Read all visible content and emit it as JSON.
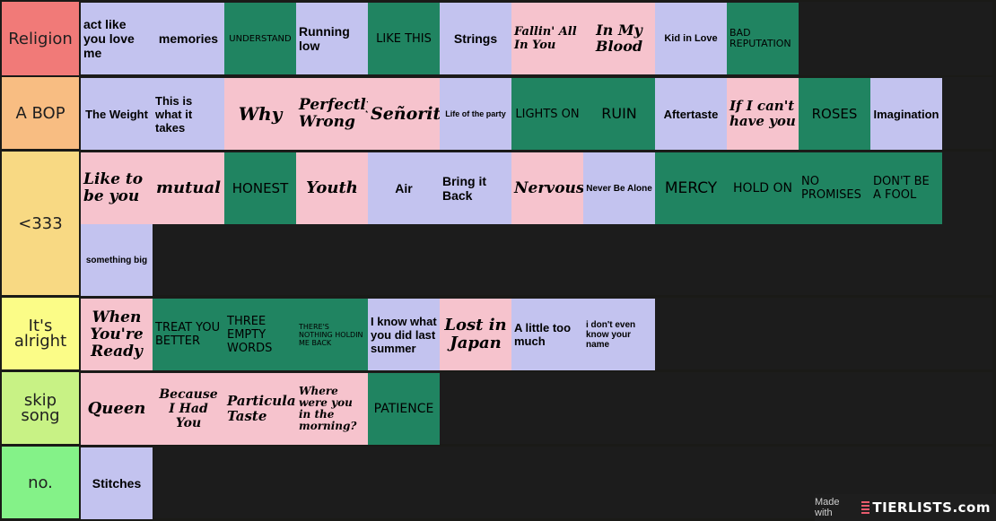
{
  "tiers": [
    {
      "id": "religion",
      "label": "Religion",
      "color": "#f17a78",
      "items": [
        {
          "text": "act like you love me",
          "color": "#c3c3ef",
          "style": "sans-left",
          "size": 14
        },
        {
          "text": "memories",
          "color": "#c3c3ef",
          "style": "sans-center",
          "size": 14
        },
        {
          "text": "UNDERSTAND",
          "color": "#208461",
          "style": "caps-center",
          "size": 10
        },
        {
          "text": "Running low",
          "color": "#c3c3ef",
          "style": "sans-left",
          "size": 14
        },
        {
          "text": "LIKE THIS",
          "color": "#208461",
          "style": "caps-center",
          "size": 13
        },
        {
          "text": "Strings",
          "color": "#c3c3ef",
          "style": "sans-center",
          "size": 14
        },
        {
          "text": "Fallin' All In You",
          "color": "#f6c3cd",
          "style": "script-left",
          "size": 13
        },
        {
          "text": "In My Blood",
          "color": "#f6c3cd",
          "style": "script-center",
          "size": 16
        },
        {
          "text": "Kid in Love",
          "color": "#c3c3ef",
          "style": "sans-center",
          "size": 11
        },
        {
          "text": "BAD REPUTATION",
          "color": "#208461",
          "style": "caps-left",
          "size": 11
        }
      ]
    },
    {
      "id": "a-bop",
      "label": "A BOP",
      "color": "#f8bd82",
      "items": [
        {
          "text": "The Weight",
          "color": "#c3c3ef",
          "style": "sans-center",
          "size": 13
        },
        {
          "text": "This is what it takes",
          "color": "#c3c3ef",
          "style": "sans-left",
          "size": 13
        },
        {
          "text": "Why",
          "color": "#f6c3cd",
          "style": "script-center",
          "size": 20
        },
        {
          "text": "Perfectly Wrong",
          "color": "#f6c3cd",
          "style": "script-left",
          "size": 17
        },
        {
          "text": "Señorita",
          "color": "#f6c3cd",
          "style": "script-center",
          "size": 19
        },
        {
          "text": "Life of the party",
          "color": "#c3c3ef",
          "style": "sans-center",
          "size": 9
        },
        {
          "text": "LIGHTS ON",
          "color": "#208461",
          "style": "caps-center",
          "size": 13
        },
        {
          "text": "RUIN",
          "color": "#208461",
          "style": "caps-center",
          "size": 16
        },
        {
          "text": "Aftertaste",
          "color": "#c3c3ef",
          "style": "sans-center",
          "size": 13
        },
        {
          "text": "If I can't have you",
          "color": "#f6c3cd",
          "style": "script-left",
          "size": 15
        },
        {
          "text": "ROSES",
          "color": "#208461",
          "style": "caps-center",
          "size": 15
        },
        {
          "text": "Imagination",
          "color": "#c3c3ef",
          "style": "sans-center",
          "size": 13
        }
      ]
    },
    {
      "id": "less-than-333",
      "label": "<333",
      "color": "#f8d983",
      "items": [
        {
          "text": "Like to be you",
          "color": "#f6c3cd",
          "style": "script-left",
          "size": 17
        },
        {
          "text": "mutual",
          "color": "#f6c3cd",
          "style": "script-center",
          "size": 18
        },
        {
          "text": "HONEST",
          "color": "#208461",
          "style": "caps-center",
          "size": 15
        },
        {
          "text": "Youth",
          "color": "#f6c3cd",
          "style": "script-center",
          "size": 18
        },
        {
          "text": "Air",
          "color": "#c3c3ef",
          "style": "sans-center",
          "size": 14
        },
        {
          "text": "Bring it Back",
          "color": "#c3c3ef",
          "style": "sans-left",
          "size": 14
        },
        {
          "text": "Nervous",
          "color": "#f6c3cd",
          "style": "script-center",
          "size": 17
        },
        {
          "text": "Never Be Alone",
          "color": "#c3c3ef",
          "style": "sans-center",
          "size": 10
        },
        {
          "text": "MERCY",
          "color": "#208461",
          "style": "caps-center",
          "size": 17
        },
        {
          "text": "HOLD ON",
          "color": "#208461",
          "style": "caps-center",
          "size": 14
        },
        {
          "text": "NO PROMISES",
          "color": "#208461",
          "style": "caps-left",
          "size": 13
        },
        {
          "text": "DON'T BE A FOOL",
          "color": "#208461",
          "style": "caps-left",
          "size": 13
        },
        {
          "text": "something big",
          "color": "#c3c3ef",
          "style": "sans-center",
          "size": 10
        }
      ]
    },
    {
      "id": "its-alright",
      "label": "It's alright",
      "color": "#fbfc87",
      "items": [
        {
          "text": "When You're Ready",
          "color": "#f6c3cd",
          "style": "script-center",
          "size": 17
        },
        {
          "text": "TREAT YOU BETTER",
          "color": "#208461",
          "style": "caps-left",
          "size": 13
        },
        {
          "text": "THREE EMPTY WORDS",
          "color": "#208461",
          "style": "caps-left",
          "size": 13
        },
        {
          "text": "THERE'S NOTHING HOLDIN ME BACK",
          "color": "#208461",
          "style": "caps-left",
          "size": 8
        },
        {
          "text": "I know what you did last summer",
          "color": "#c3c3ef",
          "style": "sans-left",
          "size": 13
        },
        {
          "text": "Lost in Japan",
          "color": "#f6c3cd",
          "style": "script-center",
          "size": 18
        },
        {
          "text": "A little too much",
          "color": "#c3c3ef",
          "style": "sans-left",
          "size": 13
        },
        {
          "text": "i don't even know your name",
          "color": "#c3c3ef",
          "style": "sans-left",
          "size": 10
        }
      ]
    },
    {
      "id": "skip-song",
      "label": "skip song",
      "color": "#c8f285",
      "items": [
        {
          "text": "Queen",
          "color": "#f6c3cd",
          "style": "script-center",
          "size": 18
        },
        {
          "text": "Because I Had You",
          "color": "#f6c3cd",
          "style": "script-center",
          "size": 14
        },
        {
          "text": "Particular Taste",
          "color": "#f6c3cd",
          "style": "script-left",
          "size": 15
        },
        {
          "text": "Where were you in the morning?",
          "color": "#f6c3cd",
          "style": "script-left",
          "size": 12
        },
        {
          "text": "PATIENCE",
          "color": "#208461",
          "style": "caps-center",
          "size": 14
        }
      ]
    },
    {
      "id": "no",
      "label": "no.",
      "color": "#84f288",
      "items": [
        {
          "text": "Stitches",
          "color": "#c3c3ef",
          "style": "sans-center",
          "size": 14
        }
      ]
    }
  ],
  "watermark": {
    "made_with": "Made with",
    "logo_text": "TIERLISTS.com"
  }
}
